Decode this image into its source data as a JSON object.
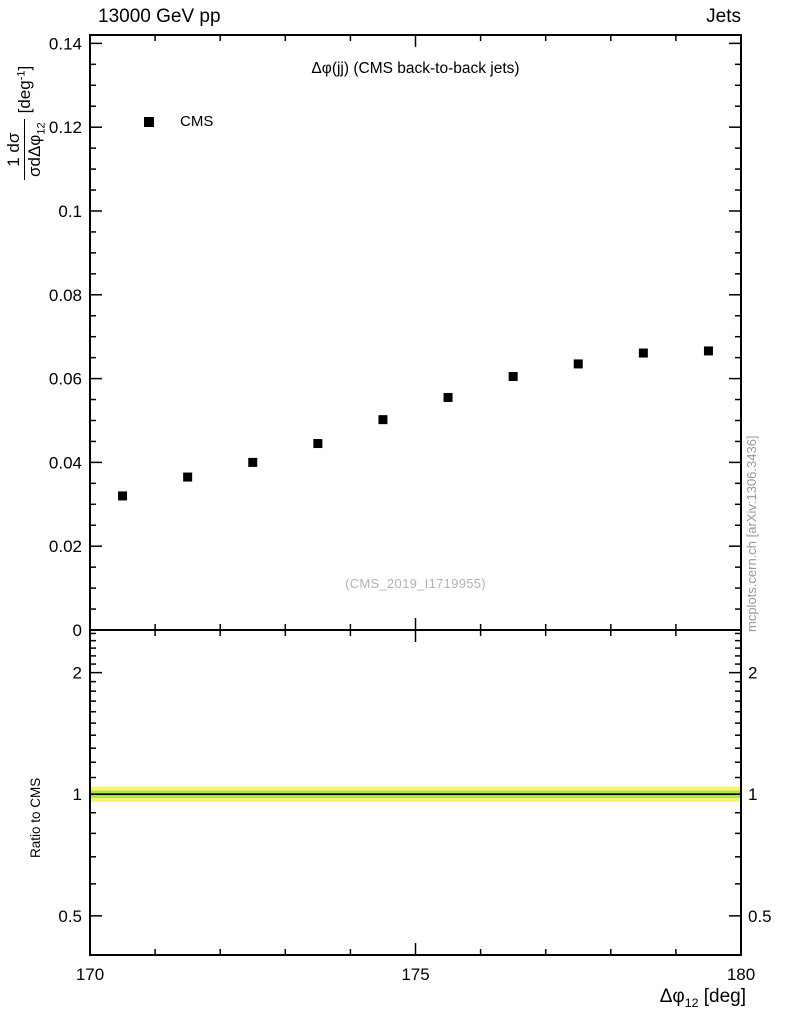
{
  "header": {
    "left": "13000 GeV pp",
    "right": "Jets"
  },
  "main_panel": {
    "title": "Δφ(jj) (CMS back-to-back jets)",
    "legend_label": "CMS",
    "watermark": "(CMS_2019_I1719955)",
    "ylabel": {
      "numerator": "1 dσ",
      "denominator": "σdΔφ",
      "denominator_sub": "12",
      "unit_open": "[deg",
      "unit_sup": "-1",
      "unit_close": "]"
    }
  },
  "xlabel": {
    "symbol": "Δφ",
    "sub": "12",
    "unit": " [deg]"
  },
  "side_label": "mcplots.cern.ch [arXiv:1306.3436]",
  "chart_data": {
    "type": "scatter",
    "title": "Δφ(jj) (CMS back-to-back jets)",
    "xlabel": "Δφ_12 [deg]",
    "ylabel": "1/σ dσ/dΔφ_12 [deg^-1]",
    "xlim": [
      170,
      180
    ],
    "x_major_ticks": [
      170,
      175,
      180
    ],
    "x_minor_step": 1,
    "grid": false,
    "legend_position": "top-left-inside",
    "main": {
      "ylim": [
        0,
        0.142
      ],
      "y_major_ticks": [
        0,
        0.02,
        0.04,
        0.06,
        0.08,
        0.1,
        0.12,
        0.14
      ],
      "y_minor_step": 0.005,
      "series": [
        {
          "name": "CMS",
          "marker": "filled-square",
          "color": "#000000",
          "x": [
            170.5,
            171.5,
            172.5,
            173.5,
            174.5,
            175.5,
            176.5,
            177.5,
            178.5,
            179.5
          ],
          "y": [
            0.032,
            0.0365,
            0.04,
            0.0445,
            0.0502,
            0.0555,
            0.0605,
            0.0635,
            0.0661,
            0.0666
          ]
        }
      ]
    },
    "ratio": {
      "ylabel": "Ratio to CMS",
      "yscale": "log",
      "ylim": [
        0.4,
        2.55
      ],
      "y_ticks": [
        0.5,
        1,
        2
      ],
      "y_minor_ticks": [
        0.4,
        0.6,
        0.7,
        0.8,
        0.9,
        1.1,
        1.2,
        1.3,
        1.4,
        1.5,
        1.6,
        1.7,
        1.8,
        1.9,
        2.1,
        2.2,
        2.3,
        2.4,
        2.5
      ],
      "bands": [
        {
          "name": "outer-uncertainty-band",
          "color": "#f9f46b",
          "lo": 0.957,
          "hi": 1.045
        },
        {
          "name": "inner-uncertainty-band",
          "color": "#a8e64c",
          "lo": 0.979,
          "hi": 1.021
        }
      ],
      "line": 1.0
    }
  }
}
